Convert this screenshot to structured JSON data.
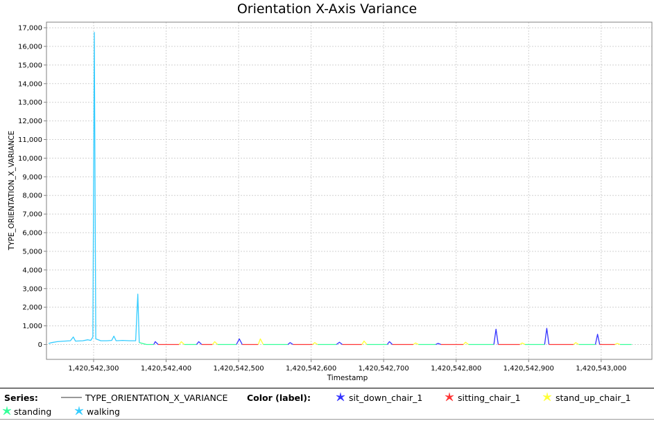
{
  "chart_data": {
    "type": "line",
    "title": "Orientation X-Axis Variance",
    "xlabel": "Timestamp",
    "ylabel": "TYPE_ORIENTATION_X_VARIANCE",
    "xlim": [
      1420542235,
      1420543070
    ],
    "ylim": [
      -800,
      17300
    ],
    "x_ticks": [
      1420542300,
      1420542400,
      1420542500,
      1420542600,
      1420542700,
      1420542800,
      1420542900,
      1420543000
    ],
    "x_tick_labels": [
      "1,420,542,300",
      "1,420,542,400",
      "1,420,542,500",
      "1,420,542,600",
      "1,420,542,700",
      "1,420,542,800",
      "1,420,542,900",
      "1,420,543,000"
    ],
    "y_ticks": [
      0,
      1000,
      2000,
      3000,
      4000,
      5000,
      6000,
      7000,
      8000,
      9000,
      10000,
      11000,
      12000,
      13000,
      14000,
      15000,
      16000,
      17000
    ],
    "y_tick_labels": [
      "0",
      "1,000",
      "2,000",
      "3,000",
      "4,000",
      "5,000",
      "6,000",
      "7,000",
      "8,000",
      "9,000",
      "10,000",
      "11,000",
      "12,000",
      "13,000",
      "14,000",
      "15,000",
      "16,000",
      "17,000"
    ],
    "grid": true,
    "series_name": "TYPE_ORIENTATION_X_VARIANCE",
    "color_label_title": "Color (label):",
    "labels": [
      {
        "name": "sit_down_chair_1",
        "color": "#3333ff"
      },
      {
        "name": "sitting_chair_1",
        "color": "#ff3333"
      },
      {
        "name": "stand_up_chair_1",
        "color": "#ffff33"
      },
      {
        "name": "standing",
        "color": "#33ff99"
      },
      {
        "name": "walking",
        "color": "#33ccff"
      }
    ],
    "segments": [
      {
        "label": "walking",
        "points": [
          [
            1420542238,
            50
          ],
          [
            1420542242,
            100
          ],
          [
            1420542250,
            150
          ],
          [
            1420542260,
            180
          ],
          [
            1420542268,
            200
          ],
          [
            1420542272,
            400
          ],
          [
            1420542275,
            180
          ],
          [
            1420542285,
            200
          ],
          [
            1420542292,
            250
          ],
          [
            1420542296,
            220
          ],
          [
            1420542299,
            400
          ],
          [
            1420542301,
            16750
          ],
          [
            1420542303,
            300
          ],
          [
            1420542310,
            200
          ],
          [
            1420542318,
            200
          ],
          [
            1420542325,
            220
          ],
          [
            1420542328,
            450
          ],
          [
            1420542331,
            200
          ],
          [
            1420542340,
            220
          ],
          [
            1420542350,
            200
          ],
          [
            1420542358,
            200
          ],
          [
            1420542361,
            2700
          ],
          [
            1420542363,
            100
          ]
        ]
      },
      {
        "label": "standing",
        "points": [
          [
            1420542363,
            100
          ],
          [
            1420542373,
            0
          ],
          [
            1420542383,
            0
          ]
        ]
      },
      {
        "label": "sit_down_chair_1",
        "points": [
          [
            1420542383,
            0
          ],
          [
            1420542385,
            150
          ],
          [
            1420542389,
            0
          ]
        ]
      },
      {
        "label": "sitting_chair_1",
        "points": [
          [
            1420542389,
            0
          ],
          [
            1420542418,
            0
          ]
        ]
      },
      {
        "label": "stand_up_chair_1",
        "points": [
          [
            1420542418,
            0
          ],
          [
            1420542421,
            150
          ],
          [
            1420542425,
            0
          ]
        ]
      },
      {
        "label": "standing",
        "points": [
          [
            1420542425,
            0
          ],
          [
            1420542442,
            0
          ]
        ]
      },
      {
        "label": "sit_down_chair_1",
        "points": [
          [
            1420542442,
            0
          ],
          [
            1420542445,
            150
          ],
          [
            1420542449,
            0
          ]
        ]
      },
      {
        "label": "sitting_chair_1",
        "points": [
          [
            1420542449,
            0
          ],
          [
            1420542464,
            0
          ]
        ]
      },
      {
        "label": "stand_up_chair_1",
        "points": [
          [
            1420542464,
            0
          ],
          [
            1420542467,
            150
          ],
          [
            1420542471,
            0
          ]
        ]
      },
      {
        "label": "standing",
        "points": [
          [
            1420542471,
            0
          ],
          [
            1420542497,
            0
          ]
        ]
      },
      {
        "label": "sit_down_chair_1",
        "points": [
          [
            1420542497,
            0
          ],
          [
            1420542501,
            300
          ],
          [
            1420542505,
            0
          ]
        ]
      },
      {
        "label": "sitting_chair_1",
        "points": [
          [
            1420542505,
            0
          ],
          [
            1420542527,
            0
          ]
        ]
      },
      {
        "label": "stand_up_chair_1",
        "points": [
          [
            1420542527,
            0
          ],
          [
            1420542530,
            300
          ],
          [
            1420542534,
            0
          ]
        ]
      },
      {
        "label": "standing",
        "points": [
          [
            1420542534,
            0
          ],
          [
            1420542568,
            0
          ]
        ]
      },
      {
        "label": "sit_down_chair_1",
        "points": [
          [
            1420542568,
            0
          ],
          [
            1420542571,
            100
          ],
          [
            1420542575,
            0
          ]
        ]
      },
      {
        "label": "sitting_chair_1",
        "points": [
          [
            1420542575,
            0
          ],
          [
            1420542602,
            0
          ]
        ]
      },
      {
        "label": "stand_up_chair_1",
        "points": [
          [
            1420542602,
            0
          ],
          [
            1420542605,
            100
          ],
          [
            1420542609,
            0
          ]
        ]
      },
      {
        "label": "standing",
        "points": [
          [
            1420542609,
            0
          ],
          [
            1420542635,
            0
          ]
        ]
      },
      {
        "label": "sit_down_chair_1",
        "points": [
          [
            1420542635,
            0
          ],
          [
            1420542639,
            120
          ],
          [
            1420542643,
            0
          ]
        ]
      },
      {
        "label": "sitting_chair_1",
        "points": [
          [
            1420542643,
            0
          ],
          [
            1420542670,
            0
          ]
        ]
      },
      {
        "label": "stand_up_chair_1",
        "points": [
          [
            1420542670,
            0
          ],
          [
            1420542673,
            180
          ],
          [
            1420542677,
            0
          ]
        ]
      },
      {
        "label": "standing",
        "points": [
          [
            1420542677,
            0
          ],
          [
            1420542705,
            0
          ]
        ]
      },
      {
        "label": "sit_down_chair_1",
        "points": [
          [
            1420542705,
            0
          ],
          [
            1420542708,
            150
          ],
          [
            1420542712,
            0
          ]
        ]
      },
      {
        "label": "sitting_chair_1",
        "points": [
          [
            1420542712,
            0
          ],
          [
            1420542741,
            0
          ]
        ]
      },
      {
        "label": "stand_up_chair_1",
        "points": [
          [
            1420542741,
            0
          ],
          [
            1420542744,
            80
          ],
          [
            1420542748,
            0
          ]
        ]
      },
      {
        "label": "standing",
        "points": [
          [
            1420542748,
            0
          ],
          [
            1420542772,
            0
          ]
        ]
      },
      {
        "label": "sit_down_chair_1",
        "points": [
          [
            1420542772,
            0
          ],
          [
            1420542775,
            60
          ],
          [
            1420542779,
            0
          ]
        ]
      },
      {
        "label": "sitting_chair_1",
        "points": [
          [
            1420542779,
            0
          ],
          [
            1420542810,
            0
          ]
        ]
      },
      {
        "label": "stand_up_chair_1",
        "points": [
          [
            1420542810,
            0
          ],
          [
            1420542813,
            120
          ],
          [
            1420542817,
            0
          ]
        ]
      },
      {
        "label": "standing",
        "points": [
          [
            1420542817,
            0
          ],
          [
            1420542852,
            0
          ]
        ]
      },
      {
        "label": "sit_down_chair_1",
        "points": [
          [
            1420542852,
            0
          ],
          [
            1420542855,
            820
          ],
          [
            1420542858,
            0
          ]
        ]
      },
      {
        "label": "sitting_chair_1",
        "points": [
          [
            1420542858,
            0
          ],
          [
            1420542888,
            0
          ]
        ]
      },
      {
        "label": "stand_up_chair_1",
        "points": [
          [
            1420542888,
            0
          ],
          [
            1420542891,
            80
          ],
          [
            1420542895,
            0
          ]
        ]
      },
      {
        "label": "standing",
        "points": [
          [
            1420542895,
            0
          ],
          [
            1420542922,
            0
          ]
        ]
      },
      {
        "label": "sit_down_chair_1",
        "points": [
          [
            1420542922,
            0
          ],
          [
            1420542925,
            870
          ],
          [
            1420542928,
            0
          ]
        ]
      },
      {
        "label": "sitting_chair_1",
        "points": [
          [
            1420542928,
            0
          ],
          [
            1420542962,
            0
          ]
        ]
      },
      {
        "label": "stand_up_chair_1",
        "points": [
          [
            1420542962,
            0
          ],
          [
            1420542965,
            100
          ],
          [
            1420542969,
            0
          ]
        ]
      },
      {
        "label": "standing",
        "points": [
          [
            1420542969,
            0
          ],
          [
            1420542992,
            0
          ]
        ]
      },
      {
        "label": "sit_down_chair_1",
        "points": [
          [
            1420542992,
            0
          ],
          [
            1420542995,
            550
          ],
          [
            1420542998,
            0
          ]
        ]
      },
      {
        "label": "sitting_chair_1",
        "points": [
          [
            1420542998,
            0
          ],
          [
            1420543019,
            0
          ]
        ]
      },
      {
        "label": "stand_up_chair_1",
        "points": [
          [
            1420543019,
            0
          ],
          [
            1420543022,
            60
          ],
          [
            1420543026,
            0
          ]
        ]
      },
      {
        "label": "standing",
        "points": [
          [
            1420543026,
            0
          ],
          [
            1420543042,
            0
          ]
        ]
      }
    ]
  },
  "legend": {
    "series_heading": "Series:",
    "series_name": "TYPE_ORIENTATION_X_VARIANCE",
    "color_heading": "Color (label):",
    "items": [
      {
        "name": "sit_down_chair_1",
        "color": "#3333ff"
      },
      {
        "name": "sitting_chair_1",
        "color": "#ff3333"
      },
      {
        "name": "stand_up_chair_1",
        "color": "#ffff33"
      },
      {
        "name": "standing",
        "color": "#33ff99"
      },
      {
        "name": "walking",
        "color": "#33ccff"
      }
    ]
  }
}
